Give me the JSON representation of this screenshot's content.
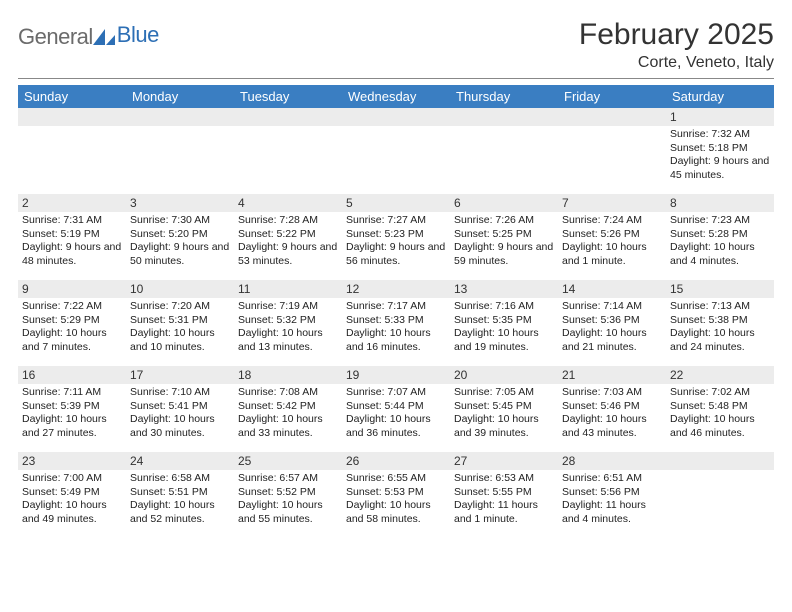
{
  "brand": {
    "name_gray": "General",
    "name_blue": "Blue"
  },
  "title": {
    "month": "February 2025",
    "location": "Corte, Veneto, Italy"
  },
  "colors": {
    "header_bg": "#3a7ec2",
    "header_text": "#ffffff",
    "daynum_bg": "#ececec",
    "text": "#222222",
    "logo_gray": "#6b6b6b",
    "logo_blue": "#2d6fb5"
  },
  "day_names": [
    "Sunday",
    "Monday",
    "Tuesday",
    "Wednesday",
    "Thursday",
    "Friday",
    "Saturday"
  ],
  "weeks": [
    [
      {
        "n": "",
        "sr": "",
        "ss": "",
        "dl": ""
      },
      {
        "n": "",
        "sr": "",
        "ss": "",
        "dl": ""
      },
      {
        "n": "",
        "sr": "",
        "ss": "",
        "dl": ""
      },
      {
        "n": "",
        "sr": "",
        "ss": "",
        "dl": ""
      },
      {
        "n": "",
        "sr": "",
        "ss": "",
        "dl": ""
      },
      {
        "n": "",
        "sr": "",
        "ss": "",
        "dl": ""
      },
      {
        "n": "1",
        "sr": "Sunrise: 7:32 AM",
        "ss": "Sunset: 5:18 PM",
        "dl": "Daylight: 9 hours and 45 minutes."
      }
    ],
    [
      {
        "n": "2",
        "sr": "Sunrise: 7:31 AM",
        "ss": "Sunset: 5:19 PM",
        "dl": "Daylight: 9 hours and 48 minutes."
      },
      {
        "n": "3",
        "sr": "Sunrise: 7:30 AM",
        "ss": "Sunset: 5:20 PM",
        "dl": "Daylight: 9 hours and 50 minutes."
      },
      {
        "n": "4",
        "sr": "Sunrise: 7:28 AM",
        "ss": "Sunset: 5:22 PM",
        "dl": "Daylight: 9 hours and 53 minutes."
      },
      {
        "n": "5",
        "sr": "Sunrise: 7:27 AM",
        "ss": "Sunset: 5:23 PM",
        "dl": "Daylight: 9 hours and 56 minutes."
      },
      {
        "n": "6",
        "sr": "Sunrise: 7:26 AM",
        "ss": "Sunset: 5:25 PM",
        "dl": "Daylight: 9 hours and 59 minutes."
      },
      {
        "n": "7",
        "sr": "Sunrise: 7:24 AM",
        "ss": "Sunset: 5:26 PM",
        "dl": "Daylight: 10 hours and 1 minute."
      },
      {
        "n": "8",
        "sr": "Sunrise: 7:23 AM",
        "ss": "Sunset: 5:28 PM",
        "dl": "Daylight: 10 hours and 4 minutes."
      }
    ],
    [
      {
        "n": "9",
        "sr": "Sunrise: 7:22 AM",
        "ss": "Sunset: 5:29 PM",
        "dl": "Daylight: 10 hours and 7 minutes."
      },
      {
        "n": "10",
        "sr": "Sunrise: 7:20 AM",
        "ss": "Sunset: 5:31 PM",
        "dl": "Daylight: 10 hours and 10 minutes."
      },
      {
        "n": "11",
        "sr": "Sunrise: 7:19 AM",
        "ss": "Sunset: 5:32 PM",
        "dl": "Daylight: 10 hours and 13 minutes."
      },
      {
        "n": "12",
        "sr": "Sunrise: 7:17 AM",
        "ss": "Sunset: 5:33 PM",
        "dl": "Daylight: 10 hours and 16 minutes."
      },
      {
        "n": "13",
        "sr": "Sunrise: 7:16 AM",
        "ss": "Sunset: 5:35 PM",
        "dl": "Daylight: 10 hours and 19 minutes."
      },
      {
        "n": "14",
        "sr": "Sunrise: 7:14 AM",
        "ss": "Sunset: 5:36 PM",
        "dl": "Daylight: 10 hours and 21 minutes."
      },
      {
        "n": "15",
        "sr": "Sunrise: 7:13 AM",
        "ss": "Sunset: 5:38 PM",
        "dl": "Daylight: 10 hours and 24 minutes."
      }
    ],
    [
      {
        "n": "16",
        "sr": "Sunrise: 7:11 AM",
        "ss": "Sunset: 5:39 PM",
        "dl": "Daylight: 10 hours and 27 minutes."
      },
      {
        "n": "17",
        "sr": "Sunrise: 7:10 AM",
        "ss": "Sunset: 5:41 PM",
        "dl": "Daylight: 10 hours and 30 minutes."
      },
      {
        "n": "18",
        "sr": "Sunrise: 7:08 AM",
        "ss": "Sunset: 5:42 PM",
        "dl": "Daylight: 10 hours and 33 minutes."
      },
      {
        "n": "19",
        "sr": "Sunrise: 7:07 AM",
        "ss": "Sunset: 5:44 PM",
        "dl": "Daylight: 10 hours and 36 minutes."
      },
      {
        "n": "20",
        "sr": "Sunrise: 7:05 AM",
        "ss": "Sunset: 5:45 PM",
        "dl": "Daylight: 10 hours and 39 minutes."
      },
      {
        "n": "21",
        "sr": "Sunrise: 7:03 AM",
        "ss": "Sunset: 5:46 PM",
        "dl": "Daylight: 10 hours and 43 minutes."
      },
      {
        "n": "22",
        "sr": "Sunrise: 7:02 AM",
        "ss": "Sunset: 5:48 PM",
        "dl": "Daylight: 10 hours and 46 minutes."
      }
    ],
    [
      {
        "n": "23",
        "sr": "Sunrise: 7:00 AM",
        "ss": "Sunset: 5:49 PM",
        "dl": "Daylight: 10 hours and 49 minutes."
      },
      {
        "n": "24",
        "sr": "Sunrise: 6:58 AM",
        "ss": "Sunset: 5:51 PM",
        "dl": "Daylight: 10 hours and 52 minutes."
      },
      {
        "n": "25",
        "sr": "Sunrise: 6:57 AM",
        "ss": "Sunset: 5:52 PM",
        "dl": "Daylight: 10 hours and 55 minutes."
      },
      {
        "n": "26",
        "sr": "Sunrise: 6:55 AM",
        "ss": "Sunset: 5:53 PM",
        "dl": "Daylight: 10 hours and 58 minutes."
      },
      {
        "n": "27",
        "sr": "Sunrise: 6:53 AM",
        "ss": "Sunset: 5:55 PM",
        "dl": "Daylight: 11 hours and 1 minute."
      },
      {
        "n": "28",
        "sr": "Sunrise: 6:51 AM",
        "ss": "Sunset: 5:56 PM",
        "dl": "Daylight: 11 hours and 4 minutes."
      },
      {
        "n": "",
        "sr": "",
        "ss": "",
        "dl": ""
      }
    ]
  ]
}
